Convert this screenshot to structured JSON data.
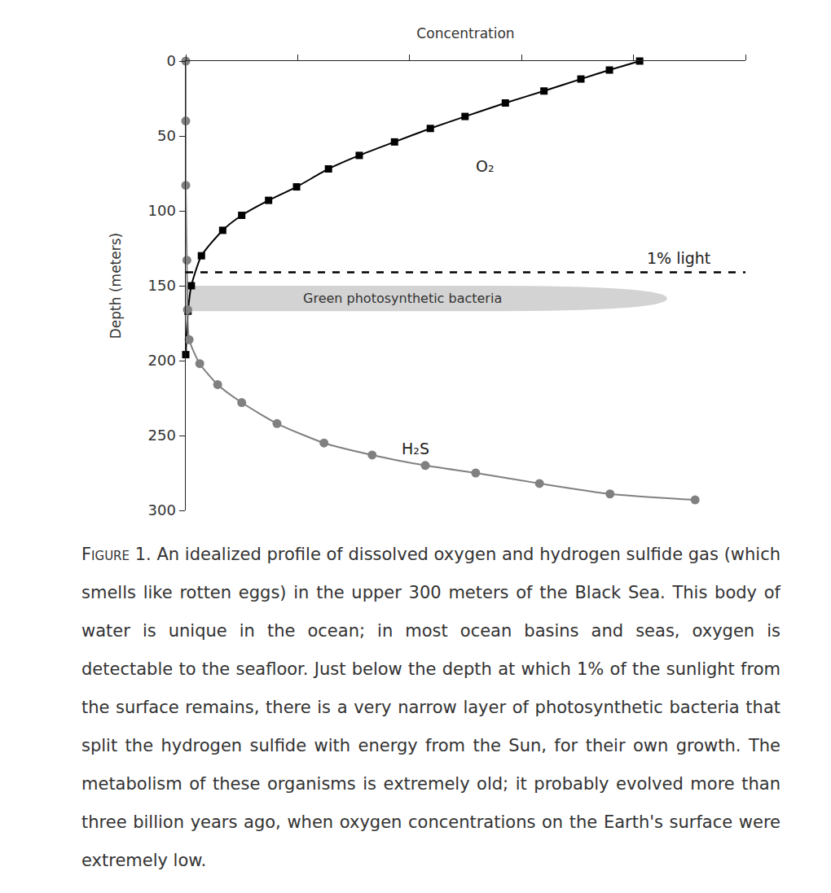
{
  "chart_data": {
    "type": "line",
    "x_label": "Concentration",
    "y_label": "Depth (meters)",
    "xlim": [
      0,
      100
    ],
    "xticks": [
      0,
      20,
      40,
      60,
      80,
      100
    ],
    "ylim": [
      300,
      0
    ],
    "yticks": [
      0,
      50,
      100,
      150,
      200,
      250,
      300
    ],
    "tick_labels": "y",
    "grid": false,
    "series": [
      {
        "name": "O₂",
        "color": "#000000",
        "marker": "square",
        "line_style": "solid",
        "x": [
          81.1,
          75.7,
          70.6,
          64.0,
          57.1,
          49.9,
          43.7,
          37.3,
          31.0,
          25.5,
          19.8,
          14.8,
          10.0,
          6.6,
          2.8,
          1.0,
          0.4,
          0
        ],
        "values": [
          0,
          6,
          12,
          20,
          28,
          37,
          45,
          54,
          63,
          72,
          84,
          93,
          103,
          113,
          130,
          150,
          167,
          196
        ]
      },
      {
        "name": "H₂S",
        "color": "#808080",
        "marker": "circle",
        "line_style": "solid",
        "x": [
          0,
          0,
          0,
          0.2,
          0.3,
          0.6,
          2.5,
          5.7,
          10.0,
          16.3,
          24.7,
          33.3,
          42.8,
          51.8,
          63.2,
          75.8,
          91.0
        ],
        "values": [
          0,
          40,
          83,
          133,
          166,
          186,
          202,
          216,
          228,
          242,
          255,
          263,
          270,
          275,
          282,
          289,
          293
        ]
      }
    ],
    "reference_lines": [
      {
        "value": 141,
        "label": "1% light",
        "line_style": "dashed"
      }
    ],
    "bands": [
      {
        "label": "Green photosynthetic bacteria",
        "xlim": [
          0,
          86
        ],
        "ylim": [
          150,
          167
        ],
        "color": "#d3d3d3"
      }
    ],
    "caption": {
      "label": "Figure 1.",
      "text": "An idealized profile of dissolved oxygen and hydrogen sulfide gas (which smells like rotten eggs) in the upper 300 meters of the Black Sea. This body of water is unique in the ocean; in most ocean basins and seas, oxygen is detectable to the seafloor. Just below the depth at which 1% of the sunlight from the surface remains, there is a very narrow layer of photosynthetic bacteria that split the hydrogen sulfide with energy from the Sun, for their own growth. The metabolism of these organisms is extremely old; it probably evolved more than three billion years ago, when oxygen concentrations on the Earth's surface were extremely low."
    }
  }
}
